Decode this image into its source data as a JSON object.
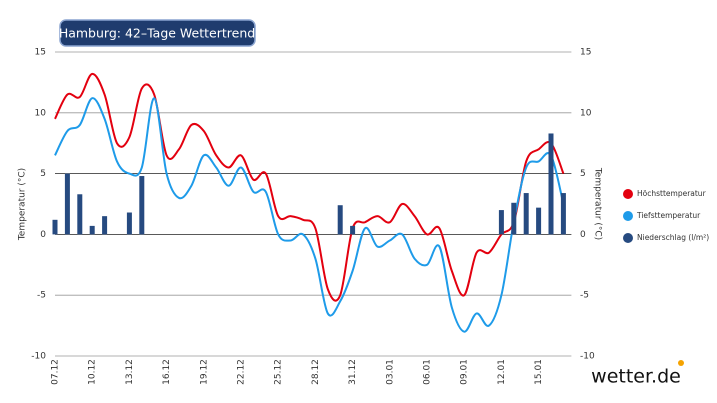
{
  "chart_data": {
    "type": "line",
    "title": "Hamburg: 42–Tage Wettertrend",
    "y_label": "Temperatur (°C)",
    "y2_label": "Temperatur (°C)",
    "brand": "wetter.de",
    "categories": [
      "07.12",
      null,
      null,
      "10.12",
      null,
      null,
      "13.12",
      null,
      null,
      "16.12",
      null,
      null,
      "19.12",
      null,
      null,
      "22.12",
      null,
      null,
      "25.12",
      null,
      null,
      "28.12",
      null,
      null,
      "31.12",
      null,
      null,
      "03.01",
      null,
      null,
      "06.01",
      null,
      null,
      "09.01",
      null,
      null,
      "12.01",
      null,
      null,
      "15.01",
      null,
      null
    ],
    "series": [
      {
        "name": "Höchsttemperatur",
        "color": "#e3000f",
        "kind": "line",
        "values": [
          9.5,
          11.5,
          11.3,
          13.2,
          11.5,
          7.5,
          8,
          12,
          11.5,
          6.5,
          7,
          9,
          8.5,
          6.5,
          5.5,
          6.5,
          4.5,
          5,
          1.5,
          1.5,
          1.2,
          0.5,
          -4.5,
          -5,
          0.5,
          1,
          1.5,
          1,
          2.5,
          1.5,
          0,
          0.5,
          -3,
          -5,
          -1.5,
          -1.5,
          0,
          1,
          6,
          7,
          7.5,
          5
        ]
      },
      {
        "name": "Tiefsttemperatur",
        "color": "#1e9be9",
        "kind": "line",
        "values": [
          6.5,
          8.5,
          9,
          11.2,
          9.5,
          6,
          5,
          5.5,
          11.2,
          5,
          3,
          4,
          6.5,
          5.5,
          4,
          5.5,
          3.5,
          3.5,
          0,
          -0.5,
          0,
          -2,
          -6.5,
          -5.5,
          -3,
          0.5,
          -1,
          -0.5,
          0,
          -2,
          -2.5,
          -1,
          -6,
          -8,
          -6.5,
          -7.5,
          -5,
          1,
          5.5,
          6,
          6.5,
          2.5
        ]
      },
      {
        "name": "Niederschlag (l/m²)",
        "color": "#264a80",
        "kind": "bar",
        "values": [
          1.2,
          5,
          3.3,
          0.7,
          1.5,
          null,
          1.8,
          4.8,
          null,
          null,
          null,
          null,
          null,
          null,
          null,
          null,
          null,
          null,
          null,
          null,
          null,
          null,
          null,
          2.4,
          0.7,
          null,
          null,
          null,
          null,
          null,
          null,
          null,
          null,
          null,
          null,
          null,
          2,
          2.6,
          3.4,
          2.2,
          8.3,
          3.4
        ]
      }
    ],
    "ylim": [
      -10,
      15
    ],
    "yticks": [
      -10,
      -5,
      0,
      5,
      10,
      15
    ],
    "y2lim": [
      -10,
      15
    ],
    "y2ticks": [
      -10,
      -5,
      0,
      5,
      10,
      15
    ],
    "grid": true,
    "legend": "right"
  }
}
